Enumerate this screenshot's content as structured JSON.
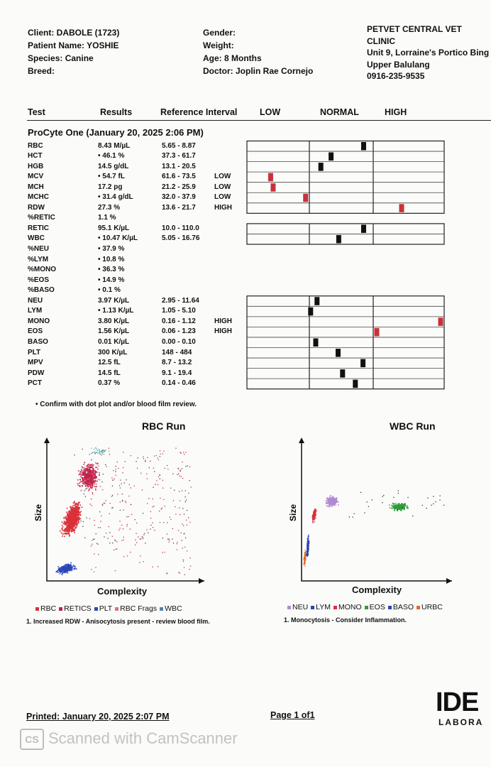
{
  "header": {
    "client": "Client: DABOLE (1723)",
    "patient": "Patient Name: YOSHIE",
    "species": "Species: Canine",
    "breed": "Breed:",
    "gender": "Gender:",
    "weight": "Weight:",
    "age": "Age: 8 Months",
    "doctor": "Doctor: Joplin Rae Cornejo",
    "clinic_lines": [
      "PETVET CENTRAL VET",
      "CLINIC",
      "Unit 9, Lorraine's Portico Bing",
      "Upper Balulang",
      "0916-235-9535"
    ]
  },
  "columns": {
    "test": "Test",
    "results": "Results",
    "reference": "Reference Interval",
    "low": "LOW",
    "normal": "NORMAL",
    "high": "HIGH"
  },
  "run_title": "ProCyte One (January 20, 2025 2:06 PM)",
  "results": [
    {
      "test": "RBC",
      "result": "8.43 M/µL",
      "ref": "5.65 - 8.87",
      "flag": "",
      "gauge": 0.85
    },
    {
      "test": "HCT",
      "result": "• 46.1 %",
      "ref": "37.3 - 61.7",
      "flag": "",
      "gauge": 0.34
    },
    {
      "test": "HGB",
      "result": "14.5 g/dL",
      "ref": "13.1 - 20.5",
      "flag": "",
      "gauge": 0.18
    },
    {
      "test": "MCV",
      "result": "• 54.7 fL",
      "ref": "61.6 - 73.5",
      "flag": "LOW",
      "gauge": -0.62
    },
    {
      "test": "MCH",
      "result": "17.2 pg",
      "ref": "21.2 - 25.9",
      "flag": "LOW",
      "gauge": -0.58
    },
    {
      "test": "MCHC",
      "result": "• 31.4 g/dL",
      "ref": "32.0 - 37.9",
      "flag": "LOW",
      "gauge": -0.06
    },
    {
      "test": "RDW",
      "result": "27.3 %",
      "ref": "13.6 - 21.7",
      "flag": "HIGH",
      "gauge": 1.4
    },
    {
      "test": "%RETIC",
      "result": "1.1 %",
      "ref": "",
      "flag": "",
      "gauge": null
    },
    {
      "test": "RETIC",
      "result": "95.1 K/µL",
      "ref": "10.0 - 110.0",
      "flag": "",
      "gauge": 0.85
    },
    {
      "test": "WBC",
      "result": "• 10.47 K/µL",
      "ref": "5.05 - 16.76",
      "flag": "",
      "gauge": 0.46
    },
    {
      "test": "%NEU",
      "result": "• 37.9 %",
      "ref": "",
      "flag": "",
      "gauge": null
    },
    {
      "test": "%LYM",
      "result": "• 10.8 %",
      "ref": "",
      "flag": "",
      "gauge": null
    },
    {
      "test": "%MONO",
      "result": "• 36.3 %",
      "ref": "",
      "flag": "",
      "gauge": null
    },
    {
      "test": "%EOS",
      "result": "• 14.9 %",
      "ref": "",
      "flag": "",
      "gauge": null
    },
    {
      "test": "%BASO",
      "result": "• 0.1 %",
      "ref": "",
      "flag": "",
      "gauge": null
    },
    {
      "test": "NEU",
      "result": "3.97 K/µL",
      "ref": "2.95 - 11.64",
      "flag": "",
      "gauge": 0.12
    },
    {
      "test": "LYM",
      "result": "• 1.13 K/µL",
      "ref": "1.05 - 5.10",
      "flag": "",
      "gauge": 0.02
    },
    {
      "test": "MONO",
      "result": "3.80 K/µL",
      "ref": "0.16 - 1.12",
      "flag": "HIGH",
      "gauge": 1.95
    },
    {
      "test": "EOS",
      "result": "1.56 K/µL",
      "ref": "0.06 - 1.23",
      "flag": "HIGH",
      "gauge": 1.05
    },
    {
      "test": "BASO",
      "result": "0.01 K/µL",
      "ref": "0.00 - 0.10",
      "flag": "",
      "gauge": 0.1
    },
    {
      "test": "PLT",
      "result": "300 K/µL",
      "ref": "148 - 484",
      "flag": "",
      "gauge": 0.45
    },
    {
      "test": "MPV",
      "result": "12.5 fL",
      "ref": "8.7 - 13.2",
      "flag": "",
      "gauge": 0.84
    },
    {
      "test": "PDW",
      "result": "14.5 fL",
      "ref": "9.1 - 19.4",
      "flag": "",
      "gauge": 0.52
    },
    {
      "test": "PCT",
      "result": "0.37 %",
      "ref": "0.14 - 0.46",
      "flag": "",
      "gauge": 0.72
    }
  ],
  "confirm_note": "• Confirm with dot plot and/or blood film review.",
  "rbc_plot": {
    "title": "RBC Run",
    "ylabel": "Size",
    "xlabel": "Complexity",
    "legend": [
      {
        "label": "RBC",
        "color": "#d9313a"
      },
      {
        "label": "RETICS",
        "color": "#c0224a"
      },
      {
        "label": "PLT",
        "color": "#2a47b8"
      },
      {
        "label": "RBC Frags",
        "color": "#e0707a"
      },
      {
        "label": "WBC",
        "color": "#5a7fb0"
      }
    ],
    "note": "1. Increased RDW - Anisocytosis present - review blood film."
  },
  "wbc_plot": {
    "title": "WBC Run",
    "ylabel": "Size",
    "xlabel": "Complexity",
    "legend": [
      {
        "label": "NEU",
        "color": "#b08ad0"
      },
      {
        "label": "LYM",
        "color": "#2a47b8"
      },
      {
        "label": "MONO",
        "color": "#d9313a"
      },
      {
        "label": "EOS",
        "color": "#2f9b3a"
      },
      {
        "label": "BASO",
        "color": "#2a47b8"
      },
      {
        "label": "URBC",
        "color": "#e06a2a"
      }
    ],
    "note": "1. Monocytosis - Consider Inflammation."
  },
  "footer": {
    "printed": "Printed: January 20, 2025 2:07 PM",
    "page": "Page 1 of1",
    "logo_text": "IDE",
    "logo_sub": "LABORA",
    "scanner": "Scanned with CamScanner"
  }
}
